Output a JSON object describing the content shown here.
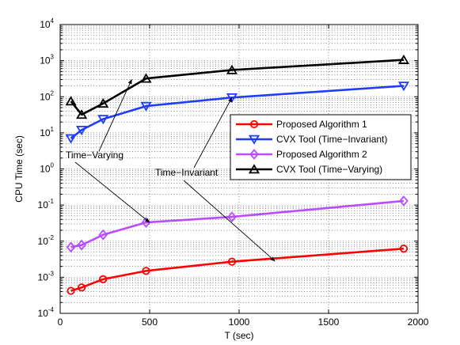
{
  "chart_data": {
    "type": "line",
    "xlabel": "T (sec)",
    "ylabel": "CPU Time (sec)",
    "xlim": [
      0,
      2000
    ],
    "ylim_exp": [
      -4,
      4
    ],
    "y_scale": "log",
    "grid": true,
    "legend_placement": "right",
    "x_ticks": [
      "0",
      "500",
      "1000",
      "1500",
      "2000"
    ],
    "y_ticks": [
      {
        "base": "10",
        "exp": "-4"
      },
      {
        "base": "10",
        "exp": "-3"
      },
      {
        "base": "10",
        "exp": "-2"
      },
      {
        "base": "10",
        "exp": "-1"
      },
      {
        "base": "10",
        "exp": "0"
      },
      {
        "base": "10",
        "exp": "1"
      },
      {
        "base": "10",
        "exp": "2"
      },
      {
        "base": "10",
        "exp": "3"
      },
      {
        "base": "10",
        "exp": "4"
      }
    ],
    "x": [
      60,
      120,
      240,
      480,
      960,
      1920
    ],
    "series": [
      {
        "name": "Proposed Algorithm 1",
        "color": "#ff0000",
        "marker": "circle",
        "values": [
          0.00042,
          0.00052,
          0.00088,
          0.0015,
          0.0027,
          0.0062
        ]
      },
      {
        "name": "CVX Tool (Time−Invariant)",
        "color": "#1f3cff",
        "marker": "triangle-down",
        "values": [
          7,
          12,
          24,
          55,
          95,
          200
        ]
      },
      {
        "name": "Proposed Algorithm 2",
        "color": "#b94cff",
        "marker": "diamond",
        "values": [
          0.0068,
          0.0078,
          0.015,
          0.033,
          0.047,
          0.13
        ]
      },
      {
        "name": "CVX Tool (Time−Varying)",
        "color": "#000000",
        "marker": "triangle-up",
        "values": [
          75,
          32,
          65,
          320,
          550,
          1050
        ]
      }
    ],
    "annotations": [
      {
        "text": "Time−Varying",
        "arrows_to": [
          [
            400,
            300
          ],
          [
            500,
            0.033
          ]
        ]
      },
      {
        "text": "Time−Invariant",
        "arrows_to": [
          [
            960,
            95
          ],
          [
            1200,
            0.0028
          ]
        ]
      }
    ]
  }
}
